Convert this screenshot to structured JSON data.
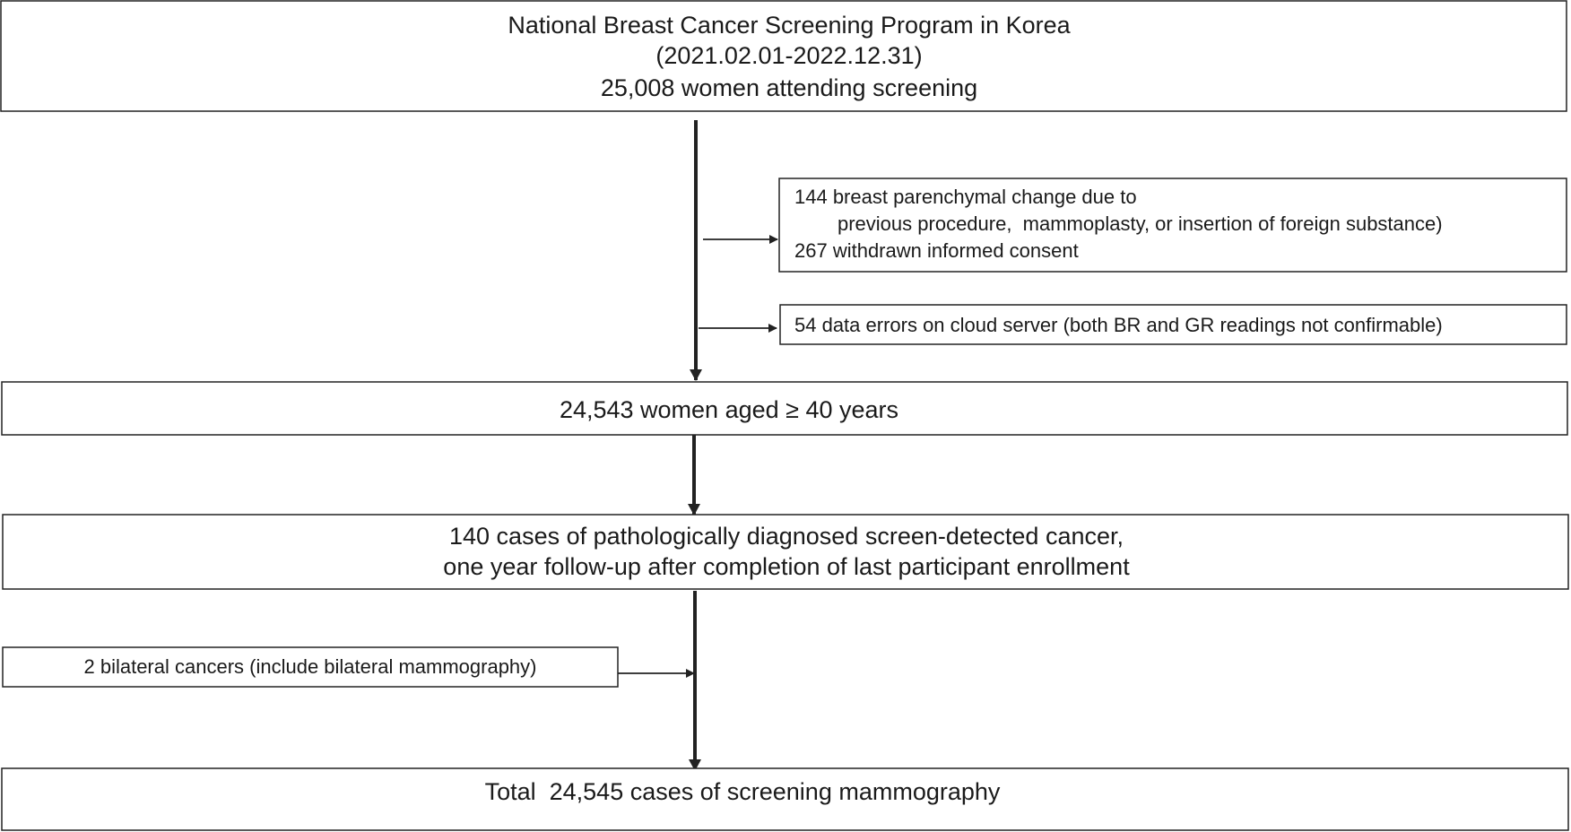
{
  "boxes": {
    "source": {
      "lines": [
        "National Breast Cancer Screening Program in Korea",
        "(2021.02.01-2022.12.31)",
        "25,008 women attending screening"
      ]
    },
    "exclusion_1": {
      "lines": [
        "144 breast parenchymal change due to",
        "previous procedure,  mammoplasty, or insertion of foreign substance)",
        "267 withdrawn informed consent"
      ]
    },
    "exclusion_2": {
      "lines": [
        "54 data errors on cloud server (both BR and GR readings not confirmable)"
      ]
    },
    "eligible": {
      "lines": [
        "24,543 women aged ≥ 40 years"
      ]
    },
    "cancers": {
      "lines": [
        "140 cases of pathologically diagnosed screen-detected cancer,",
        "one year follow-up after completion of last participant enrollment"
      ]
    },
    "addition": {
      "lines": [
        "2 bilateral cancers (include bilateral mammography)"
      ]
    },
    "total": {
      "lines": [
        "Total  24,545 cases of screening mammography"
      ]
    }
  }
}
